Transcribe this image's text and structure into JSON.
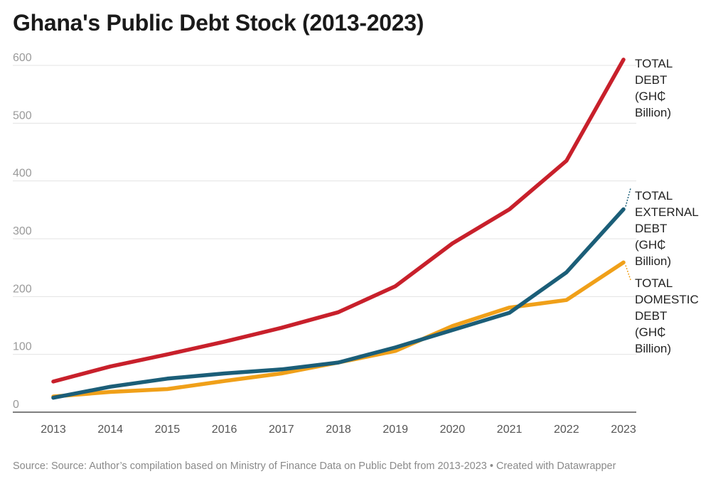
{
  "title": "Ghana's Public Debt Stock (2013-2023)",
  "footer": "Source: Source: Author’s compilation based on Ministry of Finance Data on Public Debt from 2013-2023 • Created with Datawrapper",
  "chart_data": {
    "type": "line",
    "title": "Ghana's Public Debt Stock (2013-2023)",
    "xlabel": "",
    "ylabel": "",
    "x": [
      2013,
      2014,
      2015,
      2016,
      2017,
      2018,
      2019,
      2020,
      2021,
      2022,
      2023
    ],
    "yticks": [
      0,
      100,
      200,
      300,
      400,
      500,
      600
    ],
    "ylim": [
      0,
      600
    ],
    "grid": true,
    "legend": "direct labels at line ends (right)",
    "series": [
      {
        "key": "total",
        "name": "TOTAL DEBT (GH₵ Billion)",
        "label_lines": [
          "TOTAL",
          "DEBT",
          "(GH₵",
          "Billion)"
        ],
        "color": "#c8202b",
        "values": [
          53,
          79,
          100,
          122,
          146,
          173,
          218,
          292,
          351,
          435,
          610
        ]
      },
      {
        "key": "external",
        "name": "TOTAL EXTERNAL DEBT (GH₵ Billion)",
        "label_lines": [
          "TOTAL",
          "EXTERNAL",
          "DEBT",
          "(GH₵",
          "Billion)"
        ],
        "color": "#1b5e78",
        "values": [
          25,
          44,
          58,
          67,
          74,
          86,
          112,
          142,
          172,
          242,
          351
        ]
      },
      {
        "key": "domestic",
        "name": "TOTAL DOMESTIC DEBT (GH₵ Billion)",
        "label_lines": [
          "TOTAL",
          "DOMESTIC",
          "DEBT",
          "(GH₵",
          "Billion)"
        ],
        "color": "#f0a019",
        "values": [
          27,
          35,
          40,
          54,
          67,
          86,
          106,
          149,
          181,
          194,
          259
        ]
      }
    ]
  }
}
